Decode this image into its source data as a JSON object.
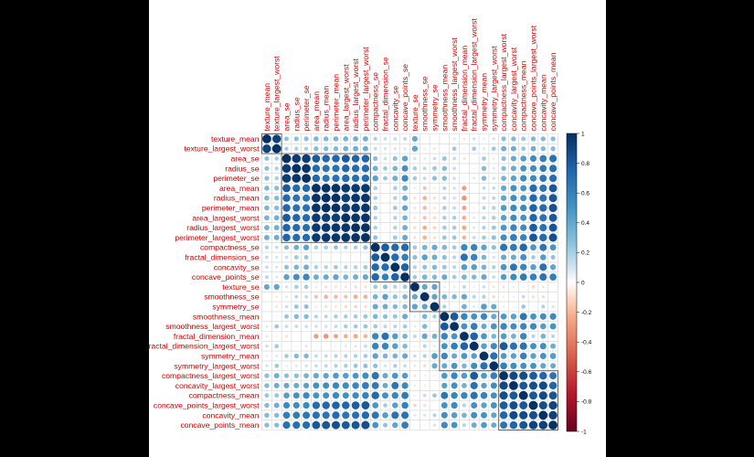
{
  "chart_data": {
    "type": "heatmap",
    "variables": [
      "texture_mean",
      "texture_largest_worst",
      "area_se",
      "radius_se",
      "perimeter_se",
      "area_mean",
      "radius_mean",
      "perimeter_mean",
      "area_largest_worst",
      "radius_largest_worst",
      "perimeter_largest_worst",
      "compactness_se",
      "fractal_dimension_se",
      "concavity_se",
      "concave_points_se",
      "texture_se",
      "smoothness_se",
      "symmetry_se",
      "smoothness_mean",
      "smoothness_largest_worst",
      "fractal_dimension_mean",
      "fractal_dimension_largest_worst",
      "symmetry_mean",
      "symmetry_largest_worst",
      "compactness_largest_worst",
      "concavity_largest_worst",
      "compactness_mean",
      "concave_points_largest_worst",
      "concavity_mean",
      "concave_points_mean"
    ],
    "colorbar_ticks": [
      "1",
      "0.8",
      "0.6",
      "0.4",
      "0.2",
      "0",
      "-0.2",
      "-0.4",
      "-0.6",
      "-0.8",
      "-1"
    ],
    "color_low": "#67001f",
    "color_mid": "#ffffff",
    "color_high": "#053061",
    "matrix": [
      [
        1.0,
        0.91,
        0.26,
        0.28,
        0.28,
        0.32,
        0.32,
        0.33,
        0.34,
        0.35,
        0.36,
        0.19,
        0.14,
        0.14,
        0.16,
        0.39,
        0.01,
        0.01,
        -0.02,
        0.08,
        -0.08,
        0.12,
        0.07,
        0.11,
        0.28,
        0.3,
        0.24,
        0.3,
        0.3,
        0.29
      ],
      [
        0.91,
        1.0,
        0.21,
        0.19,
        0.2,
        0.29,
        0.3,
        0.3,
        0.35,
        0.36,
        0.37,
        0.14,
        0.1,
        0.1,
        0.09,
        0.41,
        -0.07,
        -0.08,
        0.04,
        0.23,
        -0.05,
        0.22,
        0.09,
        0.23,
        0.36,
        0.37,
        0.24,
        0.36,
        0.3,
        0.29
      ],
      [
        0.26,
        0.21,
        1.0,
        0.95,
        0.94,
        0.8,
        0.74,
        0.75,
        0.81,
        0.76,
        0.76,
        0.28,
        0.13,
        0.27,
        0.42,
        0.11,
        0.08,
        0.13,
        0.25,
        0.14,
        -0.09,
        0.02,
        0.22,
        0.07,
        0.28,
        0.39,
        0.45,
        0.54,
        0.62,
        0.69
      ],
      [
        0.28,
        0.19,
        0.95,
        1.0,
        0.97,
        0.73,
        0.68,
        0.69,
        0.75,
        0.72,
        0.72,
        0.36,
        0.23,
        0.33,
        0.51,
        0.21,
        0.16,
        0.24,
        0.3,
        0.14,
        0.0,
        0.05,
        0.3,
        0.09,
        0.29,
        0.38,
        0.5,
        0.53,
        0.63,
        0.7
      ],
      [
        0.28,
        0.2,
        0.94,
        0.97,
        1.0,
        0.74,
        0.67,
        0.69,
        0.73,
        0.7,
        0.72,
        0.42,
        0.24,
        0.36,
        0.56,
        0.22,
        0.15,
        0.27,
        0.3,
        0.13,
        0.04,
        0.09,
        0.31,
        0.11,
        0.34,
        0.42,
        0.55,
        0.55,
        0.66,
        0.71
      ],
      [
        0.32,
        0.29,
        0.8,
        0.73,
        0.74,
        1.0,
        0.99,
        0.99,
        0.96,
        0.96,
        0.96,
        0.21,
        -0.02,
        0.21,
        0.37,
        -0.07,
        -0.17,
        -0.07,
        0.18,
        0.12,
        -0.28,
        0.0,
        0.15,
        0.14,
        0.39,
        0.51,
        0.5,
        0.72,
        0.69,
        0.82
      ],
      [
        0.32,
        0.3,
        0.74,
        0.68,
        0.67,
        0.99,
        1.0,
        1.0,
        0.94,
        0.97,
        0.97,
        0.21,
        -0.04,
        0.19,
        0.38,
        -0.1,
        -0.22,
        -0.1,
        0.17,
        0.12,
        -0.31,
        0.01,
        0.15,
        0.16,
        0.41,
        0.53,
        0.51,
        0.74,
        0.68,
        0.82
      ],
      [
        0.33,
        0.3,
        0.75,
        0.69,
        0.69,
        0.99,
        1.0,
        1.0,
        0.94,
        0.97,
        0.97,
        0.25,
        -0.01,
        0.23,
        0.41,
        -0.09,
        -0.2,
        -0.08,
        0.21,
        0.15,
        -0.26,
        0.05,
        0.18,
        0.19,
        0.46,
        0.56,
        0.56,
        0.77,
        0.72,
        0.85
      ],
      [
        0.34,
        0.35,
        0.81,
        0.75,
        0.73,
        0.96,
        0.94,
        0.94,
        1.0,
        0.98,
        0.98,
        0.2,
        -0.02,
        0.19,
        0.34,
        -0.08,
        -0.18,
        -0.11,
        0.21,
        0.21,
        -0.23,
        0.08,
        0.18,
        0.21,
        0.44,
        0.54,
        0.51,
        0.75,
        0.68,
        0.81
      ],
      [
        0.35,
        0.36,
        0.76,
        0.72,
        0.7,
        0.96,
        0.97,
        0.97,
        0.98,
        1.0,
        0.99,
        0.2,
        -0.04,
        0.19,
        0.36,
        -0.11,
        -0.23,
        -0.13,
        0.22,
        0.22,
        -0.25,
        0.09,
        0.19,
        0.24,
        0.48,
        0.57,
        0.54,
        0.79,
        0.69,
        0.83
      ],
      [
        0.36,
        0.37,
        0.76,
        0.72,
        0.72,
        0.96,
        0.97,
        0.97,
        0.98,
        0.99,
        1.0,
        0.26,
        -0.0,
        0.23,
        0.39,
        -0.1,
        -0.22,
        -0.1,
        0.24,
        0.24,
        -0.21,
        0.14,
        0.22,
        0.27,
        0.53,
        0.62,
        0.59,
        0.82,
        0.73,
        0.86
      ],
      [
        0.19,
        0.14,
        0.28,
        0.36,
        0.42,
        0.21,
        0.21,
        0.25,
        0.2,
        0.2,
        0.26,
        1.0,
        0.8,
        0.74,
        0.74,
        0.23,
        0.34,
        0.39,
        0.32,
        0.23,
        0.56,
        0.59,
        0.42,
        0.28,
        0.68,
        0.64,
        0.74,
        0.48,
        0.67,
        0.49
      ],
      [
        0.14,
        0.1,
        0.13,
        0.23,
        0.24,
        -0.02,
        -0.04,
        -0.01,
        -0.02,
        -0.04,
        -0.0,
        0.8,
        1.0,
        0.73,
        0.61,
        0.28,
        0.43,
        0.37,
        0.28,
        0.17,
        0.69,
        0.59,
        0.33,
        0.11,
        0.39,
        0.38,
        0.51,
        0.22,
        0.45,
        0.26
      ],
      [
        0.14,
        0.1,
        0.27,
        0.33,
        0.36,
        0.21,
        0.19,
        0.23,
        0.19,
        0.19,
        0.23,
        0.74,
        0.73,
        1.0,
        0.77,
        0.19,
        0.27,
        0.31,
        0.25,
        0.17,
        0.45,
        0.44,
        0.34,
        0.2,
        0.48,
        0.66,
        0.57,
        0.44,
        0.69,
        0.41
      ],
      [
        0.16,
        0.09,
        0.42,
        0.51,
        0.56,
        0.37,
        0.38,
        0.41,
        0.34,
        0.36,
        0.39,
        0.74,
        0.61,
        0.77,
        1.0,
        0.23,
        0.33,
        0.31,
        0.38,
        0.22,
        0.34,
        0.31,
        0.39,
        0.14,
        0.45,
        0.55,
        0.64,
        0.6,
        0.68,
        0.62
      ],
      [
        0.39,
        0.41,
        0.11,
        0.21,
        0.22,
        -0.07,
        -0.1,
        -0.09,
        -0.08,
        -0.11,
        -0.1,
        0.23,
        0.28,
        0.19,
        0.23,
        1.0,
        0.4,
        0.41,
        0.07,
        -0.07,
        0.16,
        -0.05,
        0.13,
        -0.08,
        -0.09,
        -0.07,
        0.05,
        -0.12,
        0.08,
        0.02
      ],
      [
        0.01,
        -0.07,
        0.08,
        0.16,
        0.15,
        -0.17,
        -0.22,
        -0.2,
        -0.18,
        -0.23,
        -0.22,
        0.34,
        0.43,
        0.27,
        0.33,
        0.4,
        1.0,
        0.41,
        0.33,
        0.31,
        0.4,
        0.17,
        0.19,
        -0.11,
        -0.06,
        -0.06,
        0.14,
        -0.1,
        0.1,
        0.03
      ],
      [
        0.01,
        -0.08,
        0.13,
        0.24,
        0.27,
        -0.07,
        -0.1,
        -0.08,
        -0.11,
        -0.13,
        -0.1,
        0.39,
        0.37,
        0.31,
        0.31,
        0.41,
        0.41,
        1.0,
        0.2,
        -0.01,
        0.35,
        0.08,
        0.45,
        0.39,
        0.06,
        0.04,
        0.23,
        -0.03,
        0.18,
        0.1
      ],
      [
        -0.02,
        0.04,
        0.25,
        0.3,
        0.3,
        0.18,
        0.17,
        0.21,
        0.21,
        0.22,
        0.24,
        0.32,
        0.28,
        0.25,
        0.38,
        0.07,
        0.33,
        0.2,
        1.0,
        0.81,
        0.58,
        0.5,
        0.56,
        0.39,
        0.47,
        0.43,
        0.66,
        0.5,
        0.52,
        0.55
      ],
      [
        0.08,
        0.23,
        0.14,
        0.14,
        0.13,
        0.12,
        0.12,
        0.15,
        0.21,
        0.22,
        0.24,
        0.23,
        0.17,
        0.17,
        0.22,
        -0.07,
        0.31,
        -0.01,
        0.81,
        1.0,
        0.5,
        0.62,
        0.39,
        0.49,
        0.57,
        0.52,
        0.57,
        0.55,
        0.45,
        0.5
      ],
      [
        -0.08,
        -0.05,
        -0.09,
        0.0,
        0.04,
        -0.28,
        -0.31,
        -0.26,
        -0.23,
        -0.25,
        -0.21,
        0.56,
        0.69,
        0.45,
        0.34,
        0.16,
        0.4,
        0.35,
        0.58,
        0.5,
        1.0,
        0.77,
        0.48,
        0.33,
        0.46,
        0.35,
        0.57,
        0.18,
        0.34,
        0.17
      ],
      [
        0.12,
        0.22,
        0.02,
        0.05,
        0.09,
        0.0,
        0.01,
        0.05,
        0.08,
        0.09,
        0.14,
        0.59,
        0.59,
        0.44,
        0.31,
        -0.05,
        0.17,
        0.08,
        0.5,
        0.62,
        0.77,
        1.0,
        0.44,
        0.54,
        0.81,
        0.69,
        0.69,
        0.51,
        0.52,
        0.37
      ],
      [
        0.07,
        0.09,
        0.22,
        0.3,
        0.31,
        0.15,
        0.15,
        0.18,
        0.18,
        0.19,
        0.22,
        0.42,
        0.33,
        0.34,
        0.39,
        0.13,
        0.19,
        0.45,
        0.56,
        0.39,
        0.48,
        0.44,
        1.0,
        0.7,
        0.47,
        0.43,
        0.6,
        0.43,
        0.5,
        0.46
      ],
      [
        0.11,
        0.23,
        0.07,
        0.09,
        0.11,
        0.14,
        0.16,
        0.19,
        0.21,
        0.24,
        0.27,
        0.28,
        0.11,
        0.2,
        0.14,
        -0.08,
        -0.11,
        0.39,
        0.39,
        0.49,
        0.33,
        0.54,
        0.7,
        1.0,
        0.61,
        0.53,
        0.51,
        0.5,
        0.41,
        0.38
      ],
      [
        0.28,
        0.36,
        0.28,
        0.29,
        0.34,
        0.39,
        0.41,
        0.46,
        0.44,
        0.48,
        0.53,
        0.68,
        0.39,
        0.48,
        0.45,
        -0.09,
        -0.06,
        0.06,
        0.47,
        0.57,
        0.46,
        0.81,
        0.47,
        0.61,
        1.0,
        0.89,
        0.87,
        0.8,
        0.75,
        0.67
      ],
      [
        0.3,
        0.37,
        0.39,
        0.38,
        0.42,
        0.51,
        0.53,
        0.56,
        0.54,
        0.57,
        0.62,
        0.64,
        0.38,
        0.66,
        0.55,
        -0.07,
        -0.06,
        0.04,
        0.43,
        0.52,
        0.35,
        0.69,
        0.43,
        0.53,
        0.89,
        1.0,
        0.82,
        0.86,
        0.88,
        0.75
      ],
      [
        0.24,
        0.24,
        0.45,
        0.5,
        0.55,
        0.5,
        0.51,
        0.56,
        0.51,
        0.54,
        0.59,
        0.74,
        0.51,
        0.57,
        0.64,
        0.05,
        0.14,
        0.23,
        0.66,
        0.57,
        0.57,
        0.69,
        0.6,
        0.51,
        0.87,
        0.82,
        1.0,
        0.82,
        0.88,
        0.83
      ],
      [
        0.3,
        0.36,
        0.54,
        0.53,
        0.55,
        0.72,
        0.74,
        0.77,
        0.75,
        0.79,
        0.82,
        0.48,
        0.22,
        0.44,
        0.6,
        -0.12,
        -0.1,
        -0.03,
        0.5,
        0.55,
        0.18,
        0.51,
        0.43,
        0.5,
        0.8,
        0.86,
        0.82,
        1.0,
        0.86,
        0.91
      ],
      [
        0.3,
        0.3,
        0.62,
        0.63,
        0.66,
        0.69,
        0.68,
        0.72,
        0.68,
        0.69,
        0.73,
        0.67,
        0.45,
        0.69,
        0.68,
        0.08,
        0.1,
        0.18,
        0.52,
        0.45,
        0.34,
        0.52,
        0.5,
        0.41,
        0.75,
        0.88,
        0.88,
        0.86,
        1.0,
        0.92
      ],
      [
        0.29,
        0.29,
        0.69,
        0.7,
        0.71,
        0.82,
        0.82,
        0.85,
        0.81,
        0.83,
        0.86,
        0.49,
        0.26,
        0.41,
        0.62,
        0.02,
        0.03,
        0.1,
        0.55,
        0.5,
        0.17,
        0.37,
        0.46,
        0.38,
        0.67,
        0.75,
        0.83,
        0.91,
        0.92,
        1.0
      ]
    ]
  }
}
